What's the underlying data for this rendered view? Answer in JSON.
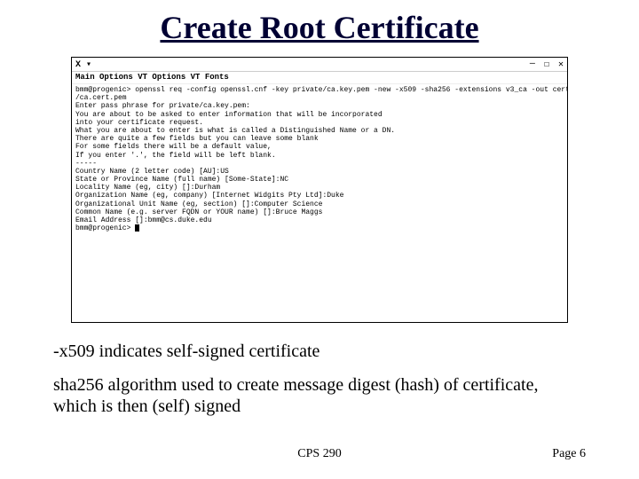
{
  "title": "Create Root Certificate",
  "terminal": {
    "window_controls": {
      "min": "—",
      "max": "☐",
      "close": "✕"
    },
    "icon_label": "X ▾",
    "menu_bar": "Main Options   VT Options  VT Fonts",
    "lines": [
      "bmm@progenic> openssl req -config openssl.cnf -key private/ca.key.pem -new -x509 -sha256 -extensions v3_ca -out certs",
      "/ca.cert.pem",
      "Enter pass phrase for private/ca.key.pem:",
      "You are about to be asked to enter information that will be incorporated",
      "into your certificate request.",
      "What you are about to enter is what is called a Distinguished Name or a DN.",
      "There are quite a few fields but you can leave some blank",
      "For some fields there will be a default value,",
      "If you enter '.', the field will be left blank.",
      "-----",
      "Country Name (2 letter code) [AU]:US",
      "State or Province Name (full name) [Some-State]:NC",
      "Locality Name (eg, city) []:Durham",
      "Organization Name (eg, company) [Internet Widgits Pty Ltd]:Duke",
      "Organizational Unit Name (eg, section) []:Computer Science",
      "Common Name (e.g. server FQDN or YOUR name) []:Bruce Maggs",
      "Email Address []:bmm@cs.duke.edu",
      "bmm@progenic> "
    ]
  },
  "notes": {
    "line1": "-x509 indicates self-signed certificate",
    "line2": "sha256 algorithm used to create message digest (hash) of certificate, which is then (self) signed"
  },
  "footer": {
    "center": "CPS 290",
    "right": "Page 6"
  },
  "colors": {
    "title_color": "#000033",
    "background": "#ffffff",
    "text": "#000000",
    "border": "#000000"
  }
}
